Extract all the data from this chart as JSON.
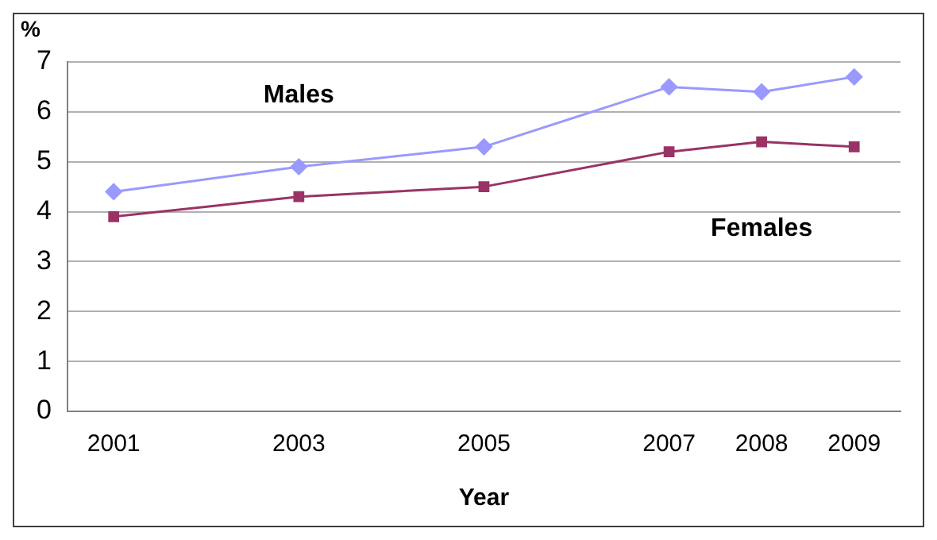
{
  "chart_data": {
    "type": "line",
    "xlabel": "Year",
    "ylabel": "%",
    "x": [
      2001,
      2003,
      2005,
      2007,
      2008,
      2009
    ],
    "series": [
      {
        "name": "Males",
        "color": "#9999ff",
        "marker": "diamond",
        "values": [
          4.4,
          4.9,
          5.3,
          6.5,
          6.4,
          6.7
        ]
      },
      {
        "name": "Females",
        "color": "#993366",
        "marker": "square",
        "values": [
          3.9,
          4.3,
          4.5,
          5.2,
          5.4,
          5.3
        ]
      }
    ],
    "xlim": [
      2000.5,
      2009.5
    ],
    "xticks": [
      2001,
      2003,
      2005,
      2007,
      2008,
      2009
    ],
    "ylim": [
      0,
      7
    ],
    "yticks": [
      0,
      1,
      2,
      3,
      4,
      5,
      6,
      7
    ],
    "grid": "y",
    "legend": false
  }
}
